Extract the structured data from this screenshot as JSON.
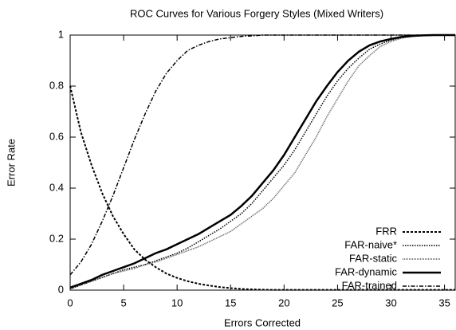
{
  "chart_data": {
    "type": "line",
    "title": "ROC Curves for Various Forgery Styles (Mixed Writers)",
    "xlabel": "Errors Corrected",
    "ylabel": "Error Rate",
    "x": [
      0,
      1,
      2,
      3,
      4,
      5,
      6,
      7,
      8,
      9,
      10,
      11,
      12,
      13,
      14,
      15,
      16,
      17,
      18,
      19,
      20,
      21,
      22,
      23,
      24,
      25,
      26,
      27,
      28,
      29,
      30,
      31,
      32,
      33,
      34,
      35,
      36
    ],
    "xlim": [
      0,
      36
    ],
    "xticks": [
      0,
      5,
      10,
      15,
      20,
      25,
      30,
      35
    ],
    "ylim": [
      0,
      1
    ],
    "yticks": [
      0,
      0.2,
      0.4,
      0.6,
      0.8,
      1
    ],
    "legend": "lower right",
    "series": [
      {
        "name": "FRR",
        "color": "#000000",
        "dash": "3 2",
        "width": 2,
        "values": [
          0.8,
          0.62,
          0.49,
          0.38,
          0.29,
          0.22,
          0.16,
          0.12,
          0.09,
          0.065,
          0.048,
          0.035,
          0.025,
          0.018,
          0.012,
          0.008,
          0.005,
          0.003,
          0.002,
          0.001,
          0.001,
          0.001,
          0.001,
          0.001,
          0.001,
          0.001,
          0.001,
          0.001,
          0.001,
          0.001,
          0.001,
          0.001,
          0.001,
          0.001,
          0.001,
          0.001,
          0.001
        ]
      },
      {
        "name": "FAR-naive*",
        "color": "#000000",
        "dash": "1.5 1.5",
        "width": 1.5,
        "values": [
          0.005,
          0.02,
          0.035,
          0.05,
          0.065,
          0.08,
          0.09,
          0.1,
          0.115,
          0.13,
          0.145,
          0.165,
          0.19,
          0.215,
          0.24,
          0.27,
          0.3,
          0.34,
          0.39,
          0.44,
          0.49,
          0.55,
          0.62,
          0.69,
          0.76,
          0.82,
          0.87,
          0.91,
          0.945,
          0.965,
          0.98,
          0.99,
          0.995,
          0.998,
          1,
          1,
          1
        ]
      },
      {
        "name": "FAR-static",
        "color": "#555555",
        "dash": "1 1",
        "width": 1.5,
        "values": [
          0.005,
          0.02,
          0.035,
          0.05,
          0.065,
          0.075,
          0.085,
          0.1,
          0.11,
          0.125,
          0.14,
          0.155,
          0.17,
          0.19,
          0.21,
          0.23,
          0.26,
          0.29,
          0.32,
          0.36,
          0.41,
          0.46,
          0.53,
          0.6,
          0.68,
          0.75,
          0.82,
          0.88,
          0.92,
          0.955,
          0.975,
          0.988,
          0.995,
          0.998,
          1,
          1,
          1
        ]
      },
      {
        "name": "FAR-dynamic",
        "color": "#000000",
        "dash": "none",
        "width": 2.5,
        "values": [
          0.01,
          0.025,
          0.04,
          0.06,
          0.075,
          0.09,
          0.105,
          0.125,
          0.145,
          0.16,
          0.18,
          0.2,
          0.22,
          0.245,
          0.27,
          0.295,
          0.33,
          0.37,
          0.42,
          0.47,
          0.53,
          0.6,
          0.67,
          0.74,
          0.8,
          0.855,
          0.9,
          0.935,
          0.96,
          0.975,
          0.985,
          0.993,
          0.997,
          0.999,
          1,
          1,
          1
        ]
      },
      {
        "name": "FAR-trained",
        "color": "#000000",
        "dash": "5 2 1.5 2",
        "width": 1.5,
        "values": [
          0.06,
          0.11,
          0.18,
          0.27,
          0.37,
          0.48,
          0.59,
          0.69,
          0.78,
          0.85,
          0.9,
          0.94,
          0.96,
          0.975,
          0.985,
          0.99,
          0.995,
          0.997,
          1,
          1,
          1,
          1,
          1,
          1,
          1,
          1,
          1,
          1,
          1,
          1,
          1,
          1,
          1,
          1,
          1,
          1,
          1
        ]
      }
    ]
  }
}
